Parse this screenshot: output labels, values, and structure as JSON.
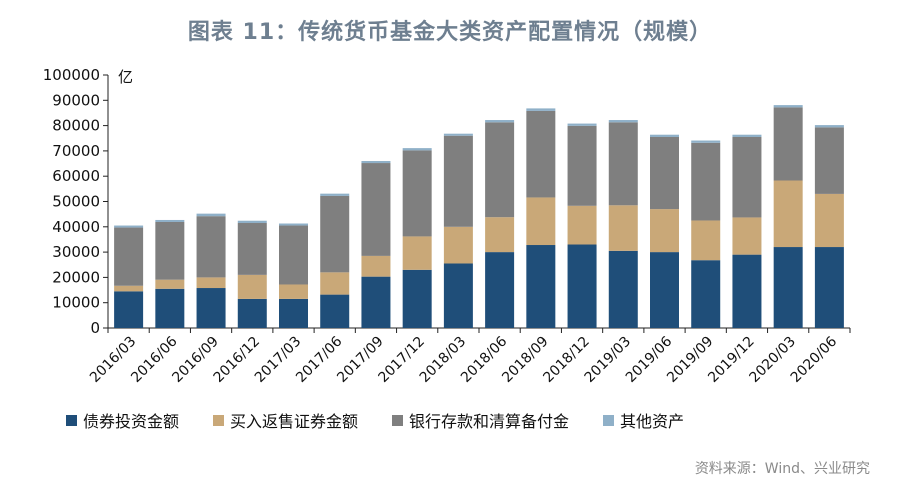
{
  "title": "图表 11：传统货币基金大类资产配置情况（规模）",
  "source": "资料来源：Wind、兴业研究",
  "chart_data": {
    "type": "bar",
    "stacked": true,
    "unit": "亿",
    "ylim": [
      0,
      100000
    ],
    "yticks": [
      0,
      10000,
      20000,
      30000,
      40000,
      50000,
      60000,
      70000,
      80000,
      90000,
      100000
    ],
    "legend_position": "bottom",
    "grid": false,
    "categories": [
      "2016/03",
      "2016/06",
      "2016/09",
      "2016/12",
      "2017/03",
      "2017/06",
      "2017/09",
      "2017/12",
      "2018/03",
      "2018/06",
      "2018/09",
      "2018/12",
      "2019/03",
      "2019/06",
      "2019/09",
      "2019/12",
      "2020/03",
      "2020/06"
    ],
    "series": [
      {
        "name": "债券投资金额",
        "color": "#1f4e79",
        "values": [
          14500,
          15500,
          15800,
          11500,
          11500,
          13200,
          20300,
          23000,
          25500,
          30000,
          32800,
          33000,
          30500,
          30000,
          26800,
          29000,
          32000,
          32000
        ]
      },
      {
        "name": "买入返售证券金额",
        "color": "#c9a878",
        "values": [
          2200,
          3600,
          4200,
          9500,
          5700,
          8800,
          8200,
          13200,
          14500,
          13800,
          18800,
          15300,
          18000,
          17000,
          15700,
          14700,
          26300,
          21000
        ]
      },
      {
        "name": "银行存款和清算备付金",
        "color": "#7f7f7f",
        "values": [
          23000,
          22800,
          24200,
          20500,
          23300,
          30200,
          36700,
          34000,
          36000,
          37500,
          34200,
          31600,
          32800,
          28500,
          30700,
          31800,
          28900,
          26300
        ]
      },
      {
        "name": "其他资产",
        "color": "#8fb0c8",
        "values": [
          800,
          800,
          1000,
          900,
          800,
          900,
          800,
          900,
          800,
          900,
          1000,
          900,
          900,
          900,
          900,
          900,
          900,
          900
        ]
      }
    ]
  }
}
